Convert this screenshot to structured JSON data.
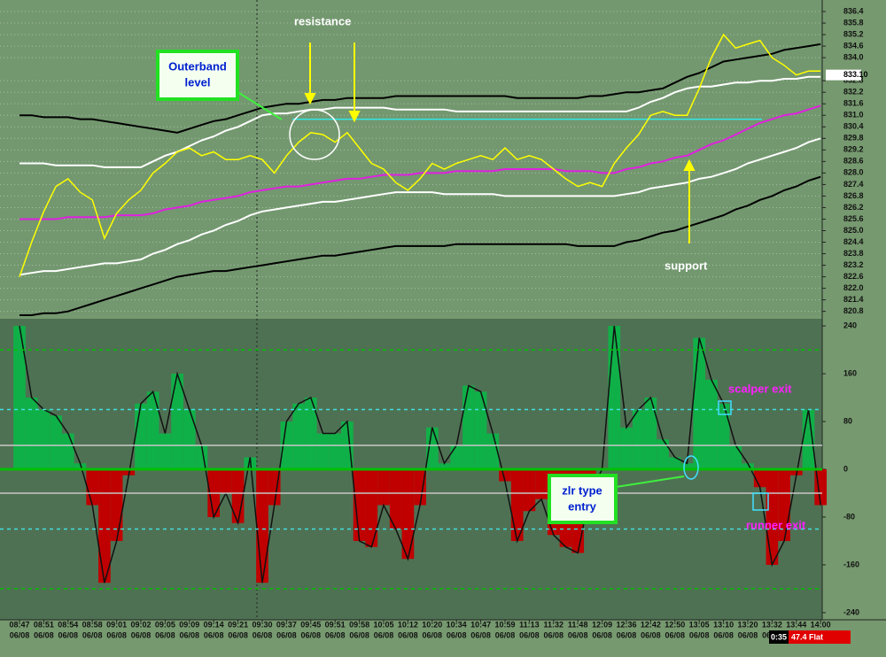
{
  "chart_data": [
    {
      "type": "line",
      "ylim": [
        820.6,
        837.0
      ],
      "yticks": [
        836.4,
        835.8,
        835.2,
        834.6,
        {
          "value": 834.0,
          "label": "834.0"
        },
        832.8,
        832.2,
        831.6,
        {
          "value": 831.0,
          "label": "831.0"
        },
        830.4,
        829.8,
        829.2,
        828.6,
        {
          "value": 828.0,
          "label": "828.0"
        },
        827.4,
        826.8,
        826.2,
        825.6,
        {
          "value": 825.0,
          "label": "825.0"
        },
        824.4,
        823.8,
        823.2,
        822.6,
        {
          "value": 822.0,
          "label": "822.0"
        },
        821.4,
        820.8
      ],
      "grid": true,
      "categories": [
        "08:47",
        null,
        "08:51",
        null,
        "08:54",
        null,
        "08:58",
        null,
        "09:01",
        null,
        "09:02",
        null,
        "09:05",
        null,
        "09:09",
        null,
        "09:14",
        null,
        "09:21",
        null,
        "09:30",
        null,
        "09:37",
        null,
        "09:45",
        null,
        "09:51",
        null,
        "09:58",
        null,
        "10:05",
        null,
        "10:12",
        null,
        "10:20",
        null,
        "10:34",
        null,
        "10:47",
        null,
        "10:59",
        null,
        "11:13",
        null,
        "11:32",
        null,
        "11:48",
        null,
        "12:09",
        null,
        "12:36",
        null,
        "12:42",
        null,
        "12:50",
        null,
        "13:05",
        null,
        "13:10",
        null,
        "13:20",
        null,
        "13:32",
        null,
        "13:44",
        null,
        "14:00"
      ],
      "date_label": "06/08",
      "series": [
        {
          "color": "#000000",
          "values": [
            831.0,
            831.0,
            830.9,
            830.9,
            830.9,
            830.8,
            830.8,
            830.7,
            830.6,
            830.5,
            830.4,
            830.3,
            830.2,
            830.1,
            830.3,
            830.5,
            830.7,
            830.8,
            831.0,
            831.2,
            831.4,
            831.5,
            831.6,
            831.6,
            831.7,
            831.8,
            831.8,
            831.9,
            831.9,
            831.9,
            831.9,
            832.0,
            832.0,
            832.0,
            832.0,
            832.0,
            832.0,
            832.0,
            832.0,
            832.0,
            832.0,
            831.9,
            831.9,
            831.9,
            831.9,
            831.9,
            831.9,
            832.0,
            832.0,
            832.1,
            832.2,
            832.2,
            832.3,
            832.4,
            832.7,
            833.0,
            833.2,
            833.5,
            833.8,
            833.9,
            834.0,
            834.1,
            834.2,
            834.4,
            834.5,
            834.6,
            834.7
          ]
        },
        {
          "color": "#ffffff",
          "values": [
            828.5,
            828.5,
            828.5,
            828.4,
            828.4,
            828.4,
            828.4,
            828.3,
            828.3,
            828.3,
            828.3,
            828.6,
            828.9,
            829.1,
            829.4,
            829.7,
            829.9,
            830.2,
            830.4,
            830.7,
            831.0,
            831.1,
            831.1,
            831.2,
            831.3,
            831.3,
            831.4,
            831.4,
            831.4,
            831.4,
            831.4,
            831.3,
            831.3,
            831.3,
            831.3,
            831.3,
            831.2,
            831.2,
            831.2,
            831.2,
            831.2,
            831.2,
            831.2,
            831.2,
            831.2,
            831.2,
            831.2,
            831.2,
            831.2,
            831.2,
            831.2,
            831.4,
            831.7,
            831.9,
            832.2,
            832.4,
            832.5,
            832.5,
            832.6,
            832.7,
            832.7,
            832.8,
            832.8,
            832.9,
            832.9,
            833.0,
            833.0
          ]
        },
        {
          "color": "#e020e0",
          "values": [
            825.6,
            825.6,
            825.6,
            825.6,
            825.7,
            825.7,
            825.7,
            825.7,
            825.8,
            825.8,
            825.8,
            825.9,
            826.1,
            826.2,
            826.3,
            826.5,
            826.6,
            826.7,
            826.8,
            827.0,
            827.1,
            827.2,
            827.3,
            827.3,
            827.4,
            827.5,
            827.6,
            827.7,
            827.7,
            827.8,
            827.9,
            827.9,
            827.9,
            828.0,
            828.0,
            828.0,
            828.1,
            828.1,
            828.1,
            828.1,
            828.2,
            828.2,
            828.2,
            828.2,
            828.2,
            828.1,
            828.1,
            828.1,
            828.0,
            828.0,
            828.2,
            828.3,
            828.5,
            828.6,
            828.8,
            828.9,
            829.2,
            829.5,
            829.7,
            830.0,
            830.3,
            830.6,
            830.8,
            831.0,
            831.1,
            831.3,
            831.5
          ]
        },
        {
          "color": "#ffffff",
          "values": [
            822.7,
            822.8,
            822.9,
            822.9,
            823.0,
            823.1,
            823.2,
            823.3,
            823.3,
            823.4,
            823.5,
            823.8,
            824.0,
            824.3,
            824.5,
            824.8,
            825.0,
            825.3,
            825.5,
            825.8,
            826.0,
            826.1,
            826.2,
            826.3,
            826.4,
            826.5,
            826.5,
            826.6,
            826.7,
            826.8,
            826.9,
            827.0,
            827.0,
            827.0,
            827.0,
            826.9,
            826.9,
            826.9,
            826.9,
            826.9,
            826.8,
            826.8,
            826.8,
            826.8,
            826.8,
            826.8,
            826.8,
            826.8,
            826.8,
            826.8,
            826.9,
            827.0,
            827.2,
            827.3,
            827.4,
            827.5,
            827.7,
            827.8,
            828.0,
            828.2,
            828.5,
            828.7,
            828.9,
            829.1,
            829.3,
            829.6,
            829.8
          ]
        },
        {
          "color": "#000000",
          "values": [
            820.6,
            820.6,
            820.7,
            820.7,
            820.8,
            821.0,
            821.2,
            821.4,
            821.6,
            821.8,
            822.0,
            822.2,
            822.4,
            822.6,
            822.7,
            822.8,
            822.9,
            822.9,
            823.0,
            823.1,
            823.2,
            823.3,
            823.4,
            823.5,
            823.6,
            823.7,
            823.7,
            823.8,
            823.9,
            824.0,
            824.1,
            824.2,
            824.2,
            824.2,
            824.2,
            824.2,
            824.3,
            824.3,
            824.3,
            824.3,
            824.3,
            824.3,
            824.3,
            824.3,
            824.3,
            824.3,
            824.2,
            824.2,
            824.2,
            824.2,
            824.4,
            824.5,
            824.7,
            824.9,
            825.0,
            825.2,
            825.4,
            825.6,
            825.8,
            826.1,
            826.3,
            826.6,
            826.8,
            827.1,
            827.3,
            827.6,
            827.8
          ]
        },
        {
          "color": "#ffff00",
          "values": [
            822.6,
            824.4,
            826.0,
            827.3,
            827.7,
            827.0,
            826.6,
            824.6,
            825.9,
            826.6,
            827.1,
            828.0,
            828.5,
            829.1,
            829.3,
            828.9,
            829.1,
            828.7,
            828.7,
            828.9,
            828.7,
            828.0,
            828.9,
            829.6,
            830.1,
            830.0,
            829.6,
            830.1,
            829.3,
            828.5,
            828.2,
            827.5,
            827.1,
            827.7,
            828.5,
            828.2,
            828.5,
            828.7,
            828.9,
            828.7,
            829.3,
            828.7,
            828.9,
            828.7,
            828.2,
            827.7,
            827.3,
            827.5,
            827.3,
            828.5,
            829.3,
            830.0,
            831.0,
            831.2,
            831.0,
            831.0,
            832.4,
            834.0,
            835.2,
            834.5,
            834.7,
            834.9,
            834.0,
            833.6,
            833.1,
            833.3,
            833.3
          ]
        }
      ],
      "resistance": 830.8,
      "last_price": {
        "value": 833.1,
        "label": "833.10"
      }
    },
    {
      "type": "bar",
      "ylim": [
        -252,
        252
      ],
      "yticks": [
        240,
        160,
        80,
        0,
        -80,
        -160,
        -240
      ],
      "levels": [
        200,
        100,
        40,
        -40,
        -100,
        -200
      ],
      "level_colors": [
        "#00c000",
        "#40e0e0",
        "#c8c8c8",
        "#c8c8c8",
        "#40e0e0",
        "#00c000"
      ],
      "positive_color": "#10b048",
      "negative_color": "#c00000",
      "values": [
        240,
        120,
        100,
        90,
        60,
        10,
        -60,
        -190,
        -120,
        -10,
        110,
        130,
        60,
        160,
        100,
        40,
        -80,
        -40,
        -90,
        20,
        -190,
        -60,
        80,
        110,
        120,
        60,
        60,
        80,
        -120,
        -130,
        -60,
        -100,
        -150,
        -60,
        70,
        10,
        40,
        140,
        130,
        60,
        -20,
        -120,
        -70,
        -50,
        -110,
        -130,
        -140,
        -40,
        0,
        240,
        70,
        100,
        120,
        50,
        20,
        10,
        220,
        150,
        110,
        40,
        10,
        -30,
        -160,
        -120,
        -10,
        100,
        -60
      ]
    }
  ],
  "annotations": {
    "resistance": "resistance",
    "support": "support",
    "outerband": [
      "Outerband",
      "level"
    ],
    "zlr": [
      "zlr type",
      "entry"
    ],
    "scalper": "scalper exit",
    "runner": "runner exit"
  },
  "status": {
    "time": "0:35",
    "state": "47.4 Flat"
  }
}
